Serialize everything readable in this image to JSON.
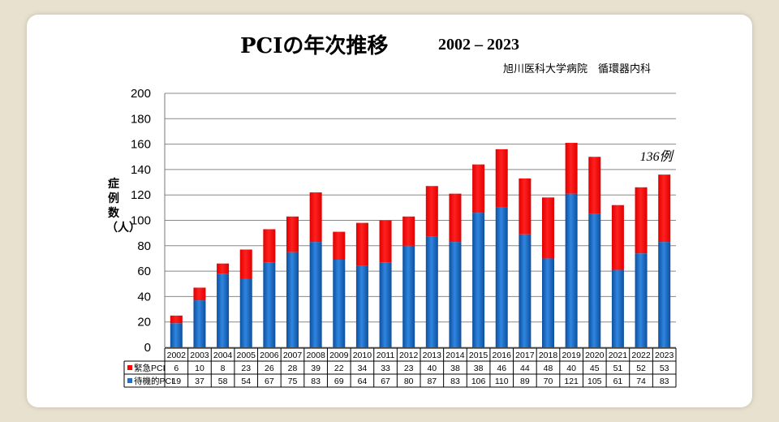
{
  "title": "PCIの年次推移",
  "title_years": "2002 – 2023",
  "subtitle": "旭川医科大学病院　循環器内科",
  "colors": {
    "emergency": "#ff0000",
    "elective": "#1f6fc5",
    "grid": "#888888"
  },
  "chart_data": {
    "type": "bar",
    "stacked": true,
    "categories": [
      "2002",
      "2003",
      "2004",
      "2005",
      "2006",
      "2007",
      "2008",
      "2009",
      "2010",
      "2011",
      "2012",
      "2013",
      "2014",
      "2015",
      "2016",
      "2017",
      "2018",
      "2019",
      "2020",
      "2021",
      "2022",
      "2023"
    ],
    "series": [
      {
        "name": "待機的PCI",
        "color": "#1f6fc5",
        "values": [
          19,
          37,
          58,
          54,
          67,
          75,
          83,
          69,
          64,
          67,
          80,
          87,
          83,
          106,
          110,
          89,
          70,
          121,
          105,
          61,
          74,
          83
        ]
      },
      {
        "name": "緊急PCI",
        "color": "#ff0000",
        "values": [
          6,
          10,
          8,
          23,
          26,
          28,
          39,
          22,
          34,
          33,
          23,
          40,
          38,
          38,
          46,
          44,
          48,
          40,
          45,
          51,
          52,
          53
        ]
      }
    ],
    "ylabel": "症例数（人）",
    "ylim": [
      0,
      200
    ],
    "yticks": [
      0,
      20,
      40,
      60,
      80,
      100,
      120,
      140,
      160,
      180,
      200
    ],
    "grid": true,
    "data_table": true,
    "annotation": "136例",
    "annotation_category": "2023"
  }
}
